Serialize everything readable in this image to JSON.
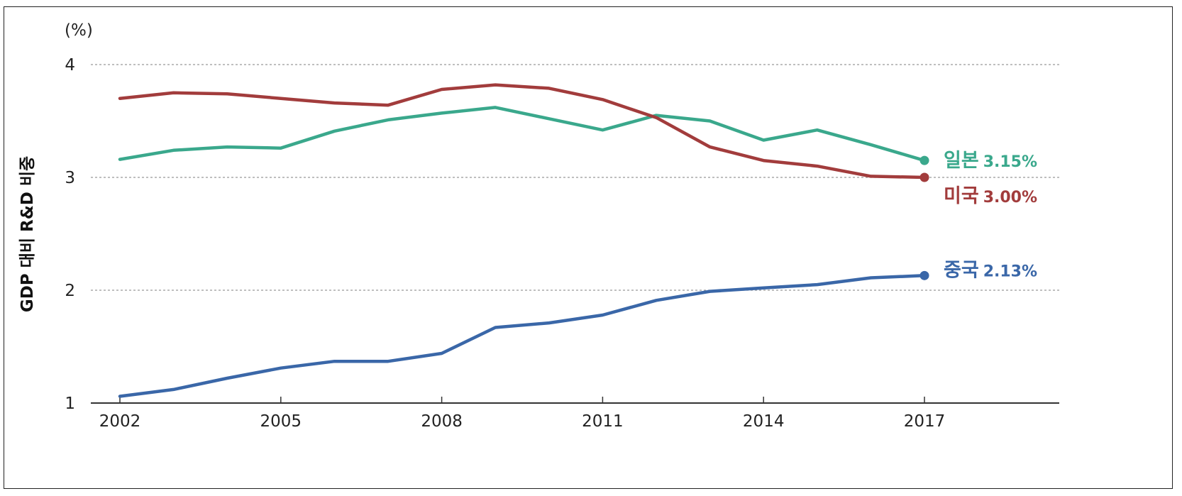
{
  "chart_data": {
    "type": "line",
    "title": "",
    "unit_label": "(%)",
    "ylabel": "GDP 대비 R&D 비중",
    "xlabel": "",
    "ylim": [
      1,
      4
    ],
    "y_ticks": [
      "1",
      "2",
      "3",
      "4"
    ],
    "x_ticks": [
      "2002",
      "2005",
      "2008",
      "2011",
      "2014",
      "2017"
    ],
    "grid": "horizontal dashed",
    "x": [
      2002,
      2003,
      2004,
      2005,
      2006,
      2007,
      2008,
      2009,
      2010,
      2011,
      2012,
      2013,
      2014,
      2015,
      2016,
      2017
    ],
    "series": [
      {
        "name": "일본",
        "end_label": "3.15%",
        "color": "#3aa88c",
        "values": [
          3.16,
          3.24,
          3.27,
          3.26,
          3.41,
          3.51,
          3.57,
          3.62,
          3.52,
          3.42,
          3.55,
          3.5,
          3.33,
          3.42,
          3.29,
          3.15
        ]
      },
      {
        "name": "미국",
        "end_label": "3.00%",
        "color": "#a23c3c",
        "values": [
          3.7,
          3.75,
          3.74,
          3.7,
          3.66,
          3.64,
          3.78,
          3.82,
          3.79,
          3.69,
          3.53,
          3.27,
          3.15,
          3.1,
          3.01,
          3.0
        ]
      },
      {
        "name": "중국",
        "end_label": "2.13%",
        "color": "#3a67a8",
        "values": [
          1.06,
          1.12,
          1.22,
          1.31,
          1.37,
          1.37,
          1.44,
          1.67,
          1.71,
          1.78,
          1.91,
          1.99,
          2.02,
          2.05,
          2.11,
          2.13
        ]
      }
    ]
  }
}
